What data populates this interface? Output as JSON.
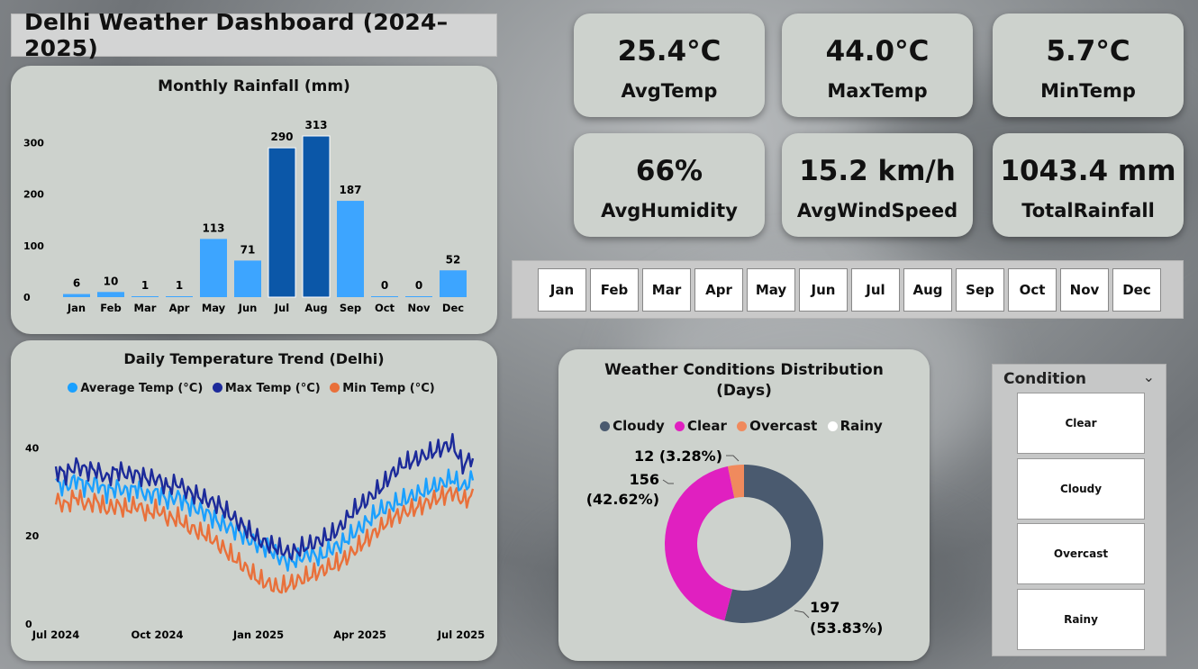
{
  "title": "Delhi Weather Dashboard (2024–2025)",
  "kpis": [
    {
      "value": "25.4°C",
      "label": "AvgTemp"
    },
    {
      "value": "44.0°C",
      "label": "MaxTemp"
    },
    {
      "value": "5.7°C",
      "label": "MinTemp"
    },
    {
      "value": "66%",
      "label": "AvgHumidity"
    },
    {
      "value": "15.2 km/h",
      "label": "AvgWindSpeed"
    },
    {
      "value": "1043.4 mm",
      "label": "TotalRainfall"
    }
  ],
  "months": [
    "Jan",
    "Feb",
    "Mar",
    "Apr",
    "May",
    "Jun",
    "Jul",
    "Aug",
    "Sep",
    "Oct",
    "Nov",
    "Dec"
  ],
  "slicer": {
    "title": "Condition",
    "items": [
      "Clear",
      "Cloudy",
      "Overcast",
      "Rainy"
    ]
  },
  "colors": {
    "bar_light": "#3da5ff",
    "bar_dark": "#0b57a8",
    "avg": "#1aa0ff",
    "max": "#1c2a9a",
    "min": "#e9703a",
    "cloudy": "#4a5a6f",
    "clear": "#e020c0",
    "overcast": "#f08a5d",
    "rainy": "#ffffff"
  },
  "chart_data": [
    {
      "type": "bar",
      "title": "Monthly Rainfall (mm)",
      "categories": [
        "Jan",
        "Feb",
        "Mar",
        "Apr",
        "May",
        "Jun",
        "Jul",
        "Aug",
        "Sep",
        "Oct",
        "Nov",
        "Dec"
      ],
      "values": [
        6,
        10,
        1,
        1,
        113,
        71,
        290,
        313,
        187,
        0,
        0,
        52
      ],
      "highlighted": [
        "Jul",
        "Aug"
      ],
      "yticks": [
        0,
        100,
        200,
        300
      ],
      "ylim": [
        0,
        320
      ]
    },
    {
      "type": "line",
      "title": "Daily Temperature Trend (Delhi)",
      "xticks": [
        "Jul 2024",
        "Oct 2024",
        "Jan 2025",
        "Apr 2025",
        "Jul 2025"
      ],
      "yticks": [
        0,
        20,
        40
      ],
      "ylim": [
        0,
        46
      ],
      "series": [
        {
          "name": "Average Temp (°C)",
          "values": [
            32,
            31,
            33,
            31,
            32,
            30,
            31,
            30,
            31,
            29,
            30,
            28,
            29,
            27,
            26,
            25,
            23,
            22,
            21,
            19,
            18,
            17,
            15,
            14,
            15,
            16,
            15,
            17,
            18,
            20,
            22,
            24,
            26,
            27,
            28,
            29,
            30,
            31,
            32,
            33,
            31,
            33
          ]
        },
        {
          "name": "Max Temp (°C)",
          "values": [
            35,
            34,
            36,
            35,
            35,
            33,
            35,
            34,
            34,
            33,
            33,
            31,
            32,
            30,
            29,
            28,
            27,
            25,
            23,
            21,
            19,
            18,
            17,
            16,
            17,
            18,
            19,
            20,
            22,
            25,
            27,
            29,
            31,
            34,
            36,
            37,
            38,
            39,
            40,
            41,
            36,
            38
          ]
        },
        {
          "name": "Min Temp (°C)",
          "values": [
            28,
            27,
            29,
            27,
            28,
            26,
            27,
            26,
            27,
            25,
            26,
            24,
            24,
            22,
            21,
            20,
            18,
            16,
            14,
            12,
            10,
            9,
            8,
            9,
            10,
            11,
            12,
            13,
            14,
            16,
            18,
            20,
            22,
            24,
            25,
            26,
            27,
            28,
            29,
            30,
            28,
            29
          ]
        }
      ]
    },
    {
      "type": "pie",
      "title": "Weather Conditions Distribution (Days)",
      "labels": [
        "Cloudy",
        "Clear",
        "Overcast",
        "Rainy"
      ],
      "values": [
        197,
        156,
        12,
        0
      ],
      "data_labels": [
        {
          "count": "197",
          "pct": "(53.83%)"
        },
        {
          "count": "156",
          "pct": "(42.62%)"
        },
        {
          "combined": "12 (3.28%)"
        }
      ]
    }
  ]
}
